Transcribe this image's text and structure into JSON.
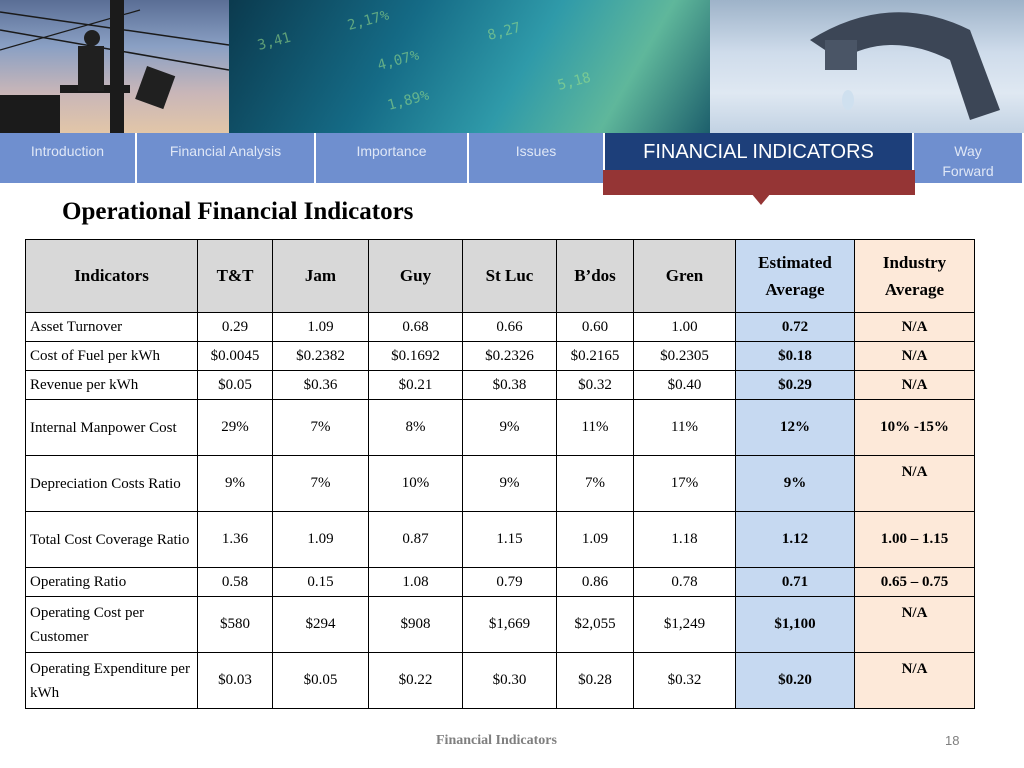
{
  "nav": {
    "tabs": [
      {
        "label": "Introduction"
      },
      {
        "label": "Financial  Analysis"
      },
      {
        "label": "Importance"
      },
      {
        "label": "Issues"
      },
      {
        "label": "FINANCIAL INDICATORS"
      },
      {
        "label": "Way Forward"
      }
    ]
  },
  "page": {
    "title": "Operational Financial Indicators",
    "footer": "Financial  Indicators",
    "page_number": "18"
  },
  "table": {
    "headers": [
      "Indicators",
      "T&T",
      "Jam",
      "Guy",
      "St Luc",
      "B’dos",
      "Gren",
      "Estimated Average",
      "Industry Average"
    ],
    "rows": [
      [
        "Asset Turnover",
        "0.29",
        "1.09",
        "0.68",
        "0.66",
        "0.60",
        "1.00",
        "0.72",
        "N/A"
      ],
      [
        "Cost of Fuel per kWh",
        "$0.0045",
        "$0.2382",
        "$0.1692",
        "$0.2326",
        "$0.2165",
        "$0.2305",
        "$0.18",
        "N/A"
      ],
      [
        "Revenue per kWh",
        "$0.05",
        "$0.36",
        "$0.21",
        "$0.38",
        "$0.32",
        "$0.40",
        "$0.29",
        "N/A"
      ],
      [
        "Internal Manpower Cost",
        "29%",
        "7%",
        "8%",
        "9%",
        "11%",
        "11%",
        "12%",
        "10% -15%"
      ],
      [
        "Depreciation Costs Ratio",
        "9%",
        "7%",
        "10%",
        "9%",
        "7%",
        "17%",
        "9%",
        "N/A"
      ],
      [
        "Total Cost Coverage Ratio",
        "1.36",
        "1.09",
        "0.87",
        "1.15",
        "1.09",
        "1.18",
        "1.12",
        "1.00 – 1.15"
      ],
      [
        "Operating Ratio",
        "0.58",
        "0.15",
        "1.08",
        "0.79",
        "0.86",
        "0.78",
        "0.71",
        "0.65 – 0.75"
      ],
      [
        "Operating Cost per Customer",
        "$580",
        "$294",
        "$908",
        "$1,669",
        "$2,055",
        "$1,249",
        "$1,100",
        "N/A"
      ],
      [
        "Operating Expenditure per kWh",
        "$0.03",
        "$0.05",
        "$0.22",
        "$0.30",
        "$0.28",
        "$0.32",
        "$0.20",
        "N/A"
      ]
    ]
  }
}
